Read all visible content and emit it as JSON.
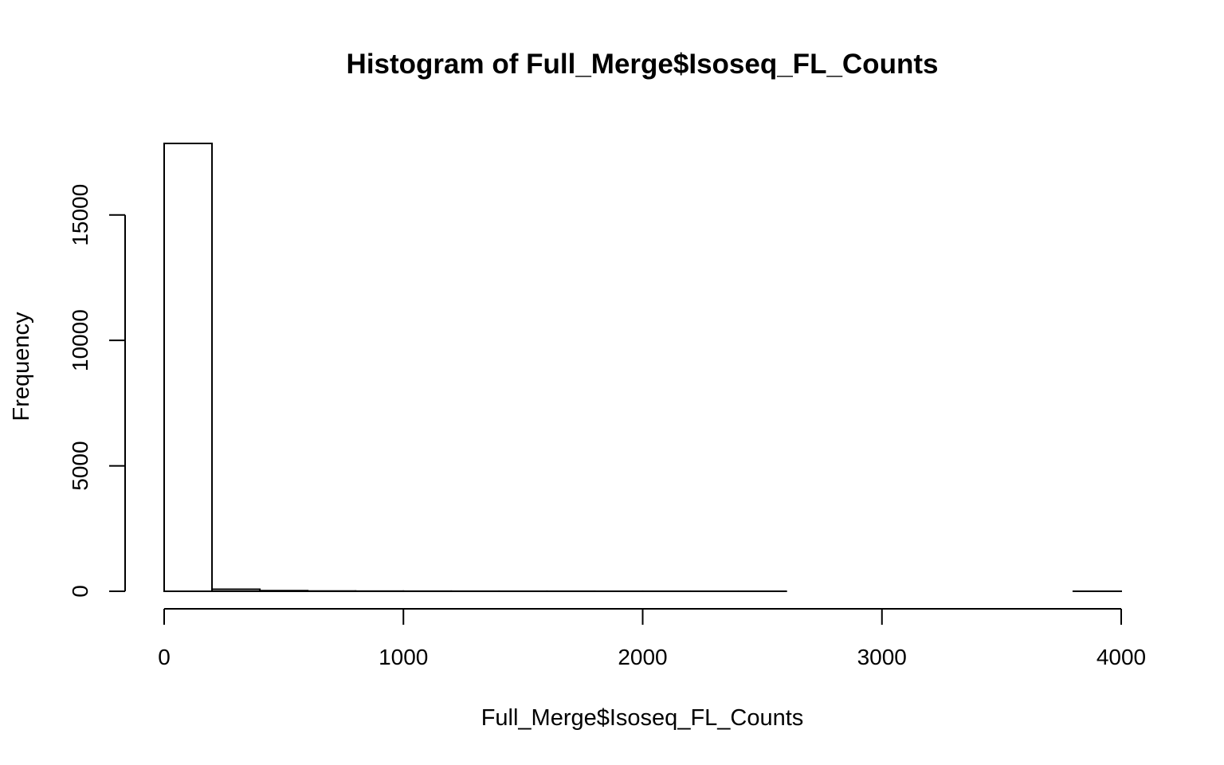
{
  "chart_data": {
    "type": "bar",
    "title": "Histogram of Full_Merge$Isoseq_FL_Counts",
    "xlabel": "Full_Merge$Isoseq_FL_Counts",
    "ylabel": "Frequency",
    "bins": [
      {
        "x0": 0,
        "x1": 200,
        "value": 17850
      },
      {
        "x0": 200,
        "x1": 400,
        "value": 80
      },
      {
        "x0": 400,
        "x1": 600,
        "value": 25
      },
      {
        "x0": 600,
        "x1": 800,
        "value": 10
      },
      {
        "x0": 800,
        "x1": 1000,
        "value": 6
      },
      {
        "x0": 1000,
        "x1": 1200,
        "value": 4
      },
      {
        "x0": 1200,
        "x1": 1400,
        "value": 3
      },
      {
        "x0": 1400,
        "x1": 1600,
        "value": 2
      },
      {
        "x0": 1600,
        "x1": 1800,
        "value": 2
      },
      {
        "x0": 1800,
        "x1": 2000,
        "value": 1
      },
      {
        "x0": 2000,
        "x1": 2200,
        "value": 1
      },
      {
        "x0": 2200,
        "x1": 2400,
        "value": 1
      },
      {
        "x0": 2400,
        "x1": 2600,
        "value": 1
      },
      {
        "x0": 2600,
        "x1": 2800,
        "value": 0
      },
      {
        "x0": 2800,
        "x1": 3000,
        "value": 0
      },
      {
        "x0": 3000,
        "x1": 3200,
        "value": 0
      },
      {
        "x0": 3200,
        "x1": 3400,
        "value": 0
      },
      {
        "x0": 3400,
        "x1": 3600,
        "value": 0
      },
      {
        "x0": 3600,
        "x1": 3800,
        "value": 0
      },
      {
        "x0": 3800,
        "x1": 4000,
        "value": 1
      }
    ],
    "xlim": [
      0,
      4000
    ],
    "ylim": [
      0,
      17850
    ],
    "x_ticks": [
      0,
      1000,
      2000,
      3000,
      4000
    ],
    "y_ticks": [
      0,
      5000,
      10000,
      15000
    ],
    "x_tick_labels": [
      "0",
      "1000",
      "2000",
      "3000",
      "4000"
    ],
    "y_tick_labels": [
      "0",
      "5000",
      "10000",
      "15000"
    ],
    "grid": false,
    "legend": "none"
  }
}
